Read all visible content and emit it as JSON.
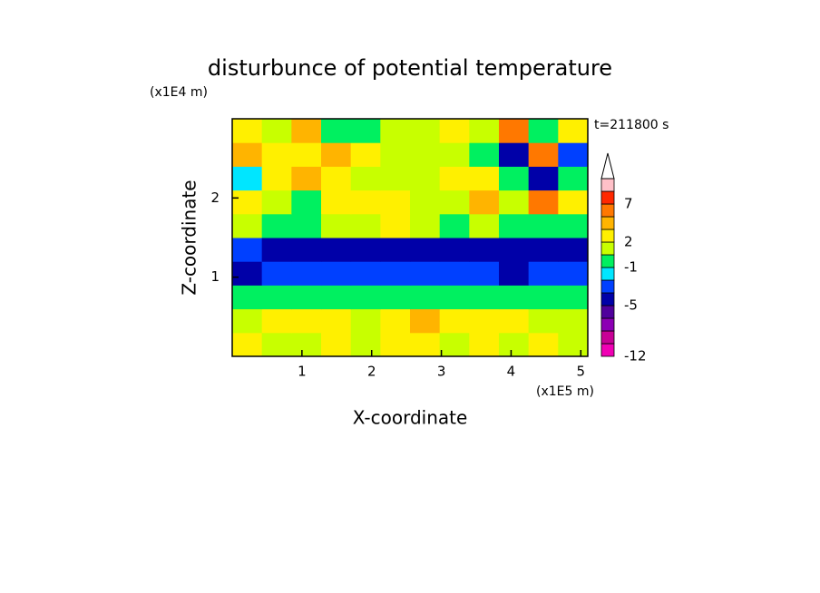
{
  "chart_data": {
    "type": "contour",
    "title": "disturbunce of potential temperature",
    "y_unit": "(x1E4 m)",
    "x_unit": "(x1E5 m)",
    "annotation": "t=211800 s",
    "xlabel": "X-coordinate",
    "ylabel": "Z-coordinate",
    "xlim": [
      0,
      5.1
    ],
    "ylim": [
      0,
      3
    ],
    "xticks": [
      1,
      2,
      3,
      4,
      5
    ],
    "yticks": [
      1,
      2
    ],
    "x": [
      0.2125,
      0.6375,
      1.0625,
      1.4875,
      1.9125,
      2.3375,
      2.7625,
      3.1875,
      3.6125,
      4.0375,
      4.4625,
      4.8875
    ],
    "y": [
      0.15,
      0.45,
      0.75,
      1.05,
      1.35,
      1.65,
      1.95,
      2.25,
      2.55,
      2.85
    ],
    "z": [
      [
        2,
        1,
        1,
        2,
        1,
        2,
        2,
        1,
        2,
        1,
        2,
        1
      ],
      [
        1,
        2,
        2,
        2,
        1,
        2,
        3,
        2,
        2,
        2,
        1,
        1
      ],
      [
        0.5,
        -0.5,
        0.5,
        -0.5,
        -0.5,
        0.5,
        -0.5,
        0.5,
        -0.5,
        0.5,
        -0.5,
        0.5
      ],
      [
        -4,
        -3,
        -2.5,
        -3,
        -3,
        -2.5,
        -3,
        -3,
        -3,
        -3.5,
        -3,
        -3
      ],
      [
        -3,
        -4,
        -4,
        -4,
        -4,
        -4,
        -4,
        -4,
        -4,
        -4,
        -4,
        -4
      ],
      [
        1,
        0.5,
        0.5,
        1.5,
        1,
        2,
        1,
        0.5,
        1,
        0.5,
        0.5,
        0.5
      ],
      [
        2,
        1.5,
        0.5,
        2,
        2,
        2,
        1.5,
        1,
        3,
        1,
        6,
        2
      ],
      [
        -2,
        2,
        3,
        2,
        1,
        1,
        1.5,
        2,
        2,
        -1,
        -5,
        0.5
      ],
      [
        3,
        2,
        2,
        3,
        2.5,
        1,
        1,
        1.5,
        -1,
        -5,
        6,
        -3
      ],
      [
        2,
        1.5,
        3,
        -1,
        -1,
        1.5,
        1.5,
        2,
        1,
        5,
        -1,
        2
      ]
    ],
    "levels": [
      -12,
      -9,
      -7,
      -6,
      -5,
      -3,
      -2,
      -1,
      1,
      2,
      3,
      5,
      7,
      9,
      12
    ],
    "colors": [
      "#f000b4",
      "#c80096",
      "#8c00b4",
      "#50009c",
      "#0000a8",
      "#0040ff",
      "#00e6ff",
      "#00f060",
      "#c8ff00",
      "#fff000",
      "#ffb400",
      "#ff7800",
      "#ff2800",
      "#ffc0c8"
    ],
    "colorbar_ticks": [
      -12,
      -5,
      -1,
      2,
      7
    ]
  }
}
